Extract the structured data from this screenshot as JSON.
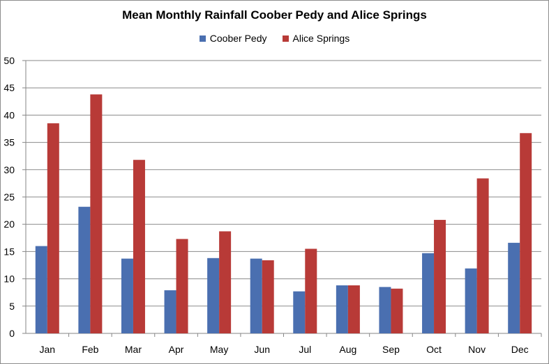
{
  "chart_data": {
    "type": "bar",
    "title": "Mean Monthly Rainfall Coober Pedy and Alice Springs",
    "xlabel": "",
    "ylabel": "",
    "categories": [
      "Jan",
      "Feb",
      "Mar",
      "Apr",
      "May",
      "Jun",
      "Jul",
      "Aug",
      "Sep",
      "Oct",
      "Nov",
      "Dec"
    ],
    "series": [
      {
        "name": "Coober Pedy",
        "color": "#4a6fb0",
        "values": [
          16.0,
          23.2,
          13.7,
          7.9,
          13.8,
          13.7,
          7.7,
          8.8,
          8.5,
          14.7,
          11.9,
          16.6
        ]
      },
      {
        "name": "Alice Springs",
        "color": "#b83a37",
        "values": [
          38.5,
          43.8,
          31.8,
          17.3,
          18.7,
          13.4,
          15.5,
          8.8,
          8.2,
          20.8,
          28.4,
          36.7
        ]
      }
    ],
    "ylim": [
      0,
      50
    ],
    "yticks": [
      0,
      5,
      10,
      15,
      20,
      25,
      30,
      35,
      40,
      45,
      50
    ],
    "grid": true,
    "legend_position": "top"
  }
}
